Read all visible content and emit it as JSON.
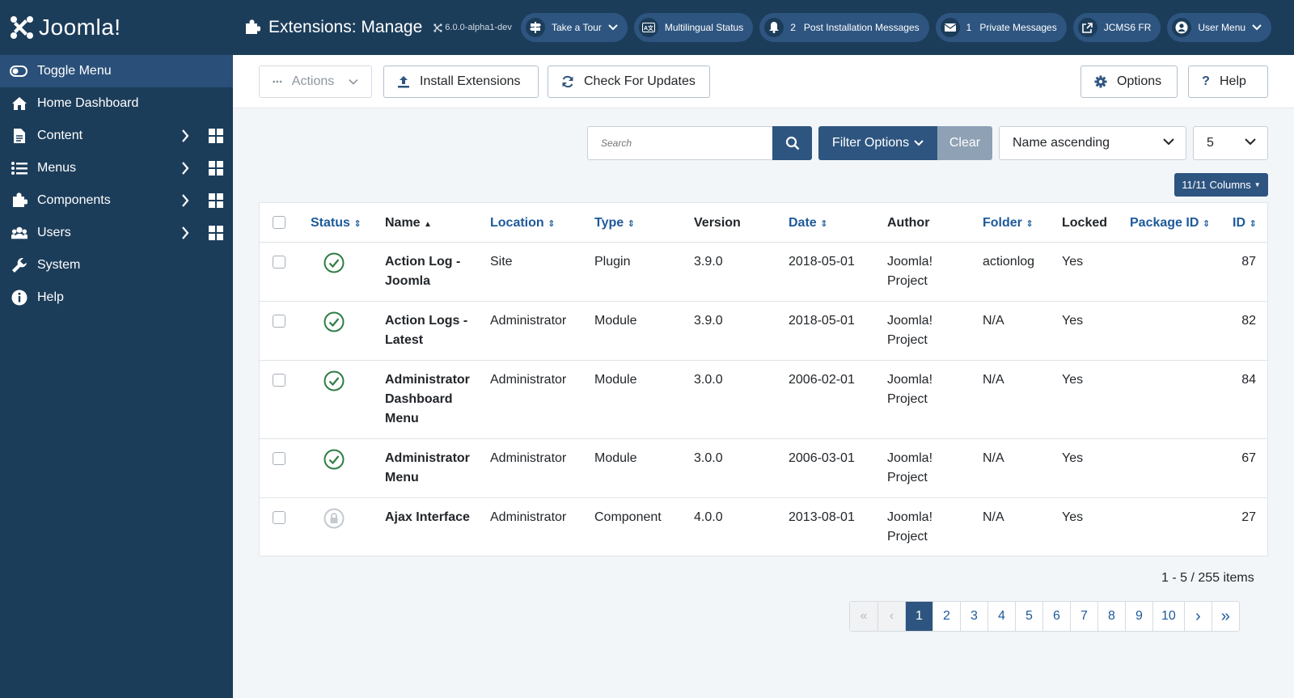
{
  "brand": {
    "name": "Joomla!"
  },
  "sidebar": {
    "toggle_label": "Toggle Menu",
    "items": [
      {
        "label": "Home Dashboard",
        "icon": "home-icon"
      },
      {
        "label": "Content",
        "icon": "file-icon"
      },
      {
        "label": "Menus",
        "icon": "list-icon"
      },
      {
        "label": "Components",
        "icon": "puzzle-icon"
      },
      {
        "label": "Users",
        "icon": "users-icon"
      },
      {
        "label": "System",
        "icon": "wrench-icon"
      },
      {
        "label": "Help",
        "icon": "info-icon"
      }
    ]
  },
  "header": {
    "title": "Extensions: Manage",
    "version": "6.0.0-alpha1-dev",
    "buttons": {
      "tour": "Take a Tour",
      "multilingual": "Multilingual Status",
      "post_install_count": "2",
      "post_install": "Post Installation Messages",
      "private_count": "1",
      "private": "Private Messages",
      "site": "JCMS6 FR",
      "user": "User Menu"
    }
  },
  "toolbar": {
    "actions": "Actions",
    "install": "Install Extensions",
    "check_updates": "Check For Updates",
    "options": "Options",
    "help": "Help"
  },
  "filters": {
    "search_placeholder": "Search",
    "filter_options": "Filter Options",
    "clear": "Clear",
    "ordering": "Name ascending",
    "limit": "5",
    "columns": "11/11 Columns"
  },
  "table": {
    "headers": {
      "status": "Status",
      "name": "Name",
      "location": "Location",
      "type": "Type",
      "version": "Version",
      "date": "Date",
      "author": "Author",
      "folder": "Folder",
      "locked": "Locked",
      "package_id": "Package ID",
      "id": "ID"
    },
    "rows": [
      {
        "status": "enabled",
        "name": "Action Log - Joomla",
        "location": "Site",
        "type": "Plugin",
        "version": "3.9.0",
        "date": "2018-05-01",
        "author": "Joomla! Project",
        "folder": "actionlog",
        "locked": "Yes",
        "package_id": "",
        "id": "87"
      },
      {
        "status": "enabled",
        "name": "Action Logs - Latest",
        "location": "Administrator",
        "type": "Module",
        "version": "3.9.0",
        "date": "2018-05-01",
        "author": "Joomla! Project",
        "folder": "N/A",
        "locked": "Yes",
        "package_id": "",
        "id": "82"
      },
      {
        "status": "enabled",
        "name": "Administrator Dashboard Menu",
        "location": "Administrator",
        "type": "Module",
        "version": "3.0.0",
        "date": "2006-02-01",
        "author": "Joomla! Project",
        "folder": "N/A",
        "locked": "Yes",
        "package_id": "",
        "id": "84"
      },
      {
        "status": "enabled",
        "name": "Administrator Menu",
        "location": "Administrator",
        "type": "Module",
        "version": "3.0.0",
        "date": "2006-03-01",
        "author": "Joomla! Project",
        "folder": "N/A",
        "locked": "Yes",
        "package_id": "",
        "id": "67"
      },
      {
        "status": "protected",
        "name": "Ajax Interface",
        "location": "Administrator",
        "type": "Component",
        "version": "4.0.0",
        "date": "2013-08-01",
        "author": "Joomla! Project",
        "folder": "N/A",
        "locked": "Yes",
        "package_id": "",
        "id": "27"
      }
    ]
  },
  "pagination": {
    "summary": "1 - 5 / 255 items",
    "pages": [
      "1",
      "2",
      "3",
      "4",
      "5",
      "6",
      "7",
      "8",
      "9",
      "10"
    ],
    "current": "1"
  },
  "colors": {
    "sidebar_bg": "#1c3d5a",
    "accent": "#2e5580",
    "link": "#1e5a9a",
    "success": "#2f7d45"
  }
}
